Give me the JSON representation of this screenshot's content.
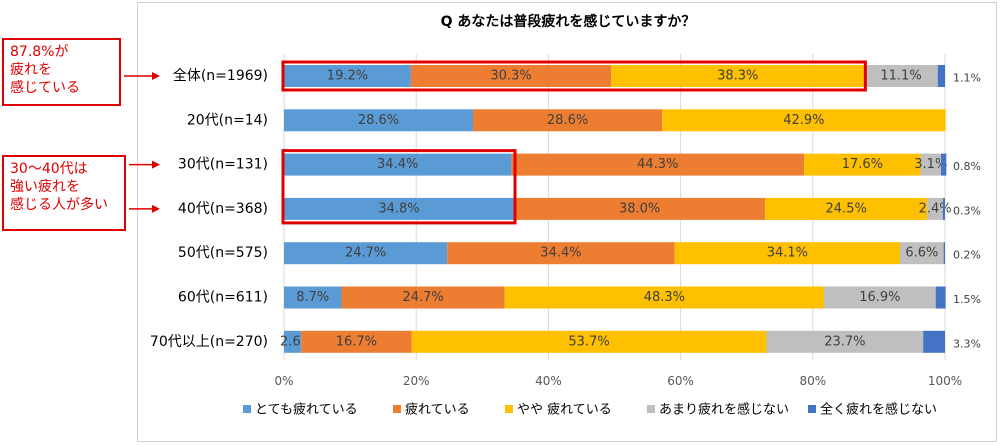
{
  "annotations": [
    {
      "id": "overall",
      "text": "87.8%が\n疲れを\n感じている"
    },
    {
      "id": "age3040",
      "text": "30～40代は\n強い疲れを\n感じる人が多い"
    }
  ],
  "colors": {
    "series": [
      "#5b9bd5",
      "#ed7d31",
      "#ffc000",
      "#bfbfbf",
      "#4472c4"
    ],
    "highlight": "#e00000",
    "grid": "#d9d9d9"
  },
  "chart_data": {
    "type": "bar",
    "orientation": "horizontal",
    "stacked": true,
    "title": "Q あなたは普段疲れを感じていますか？",
    "categories": [
      "全体(n=1969)",
      "20代(n=14)",
      "30代(n=131)",
      "40代(n=368)",
      "50代(n=575)",
      "60代(n=611)",
      "70代以上(n=270)"
    ],
    "series": [
      {
        "name": "とても疲れている",
        "values": [
          19.2,
          28.6,
          34.4,
          34.8,
          24.7,
          8.7,
          2.6
        ],
        "labels": [
          "19.2%",
          "28.6%",
          "34.4%",
          "34.8%",
          "24.7%",
          "8.7%",
          "2.6%"
        ]
      },
      {
        "name": "疲れている",
        "values": [
          30.3,
          28.6,
          44.3,
          38.0,
          34.4,
          24.7,
          16.7
        ],
        "labels": [
          "30.3%",
          "28.6%",
          "44.3%",
          "38.0%",
          "34.4%",
          "24.7%",
          "16.7%"
        ]
      },
      {
        "name": "やや 疲れている",
        "values": [
          38.3,
          42.9,
          17.6,
          24.5,
          34.1,
          48.3,
          53.7
        ],
        "labels": [
          "38.3%",
          "42.9%",
          "17.6%",
          "24.5%",
          "34.1%",
          "48.3%",
          "53.7%"
        ]
      },
      {
        "name": "あまり疲れを感じない",
        "values": [
          11.1,
          0,
          3.1,
          2.4,
          6.6,
          16.9,
          23.7
        ],
        "labels": [
          "11.1%",
          "",
          "3.1%",
          "2.4%",
          "6.6%",
          "16.9%",
          "23.7%"
        ]
      },
      {
        "name": "全く疲れを感じない",
        "values": [
          1.1,
          0,
          0.8,
          0.3,
          0.2,
          1.5,
          3.3
        ],
        "labels": [
          "1.1%",
          "",
          "0.8%",
          "0.3%",
          "0.2%",
          "1.5%",
          "3.3%"
        ]
      }
    ],
    "xlim": [
      0,
      100
    ],
    "xticks": [
      "0%",
      "20%",
      "40%",
      "60%",
      "80%",
      "100%"
    ],
    "grid": true,
    "legend_position": "bottom",
    "highlights": [
      {
        "categories": [
          0
        ],
        "series_to": 2
      },
      {
        "categories": [
          2,
          3
        ],
        "series_to": 0
      }
    ]
  }
}
